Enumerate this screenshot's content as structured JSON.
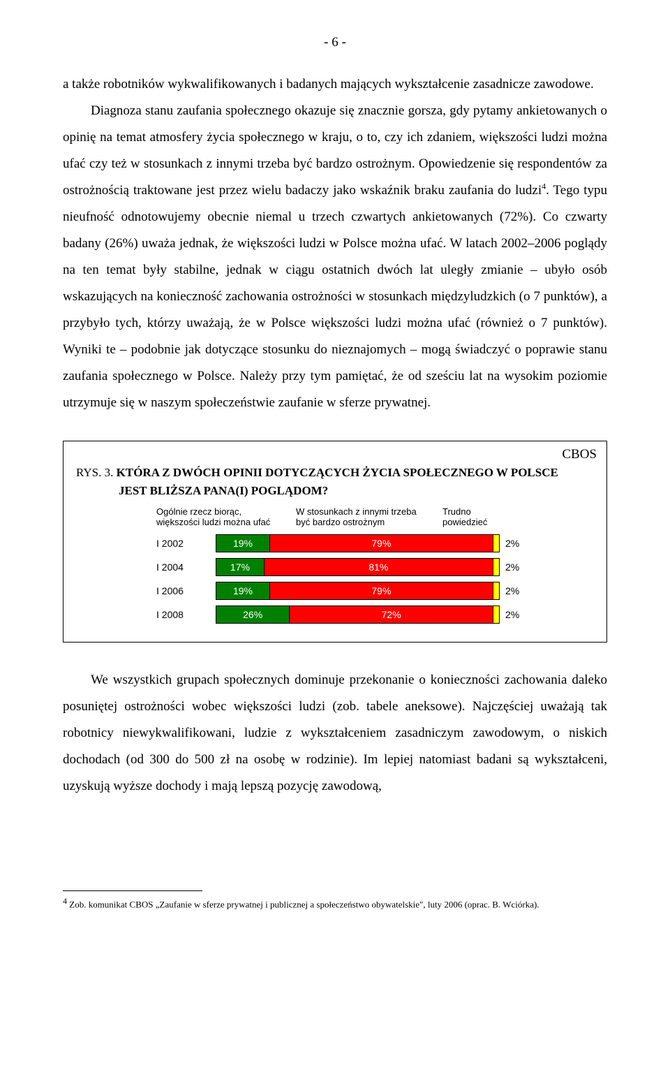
{
  "page_number_label": "- 6 -",
  "paragraph1_part1": "a także robotników wykwalifikowanych i badanych mających wykształcenie zasadnicze zawodowe.",
  "paragraph1_part2_pre_sup": "Diagnoza stanu zaufania społecznego okazuje się znacznie gorsza, gdy pytamy ankietowanych o opinię na temat atmosfery życia społecznego w kraju, o to, czy ich zdaniem, większości ludzi można ufać czy też w stosunkach z innymi trzeba być bardzo ostrożnym. Opowiedzenie się respondentów  za ostrożnością traktowane jest przez wielu badaczy jako wskaźnik braku zaufania do ludzi",
  "paragraph1_sup": "4",
  "paragraph1_part2_post_sup": ". Tego typu nieufność odnotowujemy obecnie niemal u trzech czwartych ankietowanych (72%). Co czwarty badany (26%) uważa jednak, że większości ludzi w Polsce można ufać. W latach 2002–2006 poglądy na ten temat były stabilne, jednak w ciągu ostatnich dwóch lat uległy zmianie – ubyło osób wskazujących na konieczność zachowania ostrożności w stosunkach międzyludzkich (o 7 punktów), a przybyło tych, którzy uważają, że w Polsce większości ludzi można ufać (również o 7 punktów). Wyniki te – podobnie jak dotyczące stosunku do nieznajomych – mogą świadczyć o poprawie stanu zaufania społecznego w Polsce. Należy przy tym pamiętać, że  od sześciu lat  na wysokim poziomie utrzymuje się w naszym społeczeństwie zaufanie w sferze prywatnej.",
  "chart": {
    "cbos_label": "CBOS",
    "caption_prefix": "RYS. 3. ",
    "caption_bold_l1": "KTÓRA Z DWÓCH OPINII DOTYCZĄCYCH ŻYCIA SPOŁECZNEGO W POLSCE",
    "caption_bold_l2": "JEST BLIŻSZA PANA(I) POGLĄDOM?",
    "legend1_l1": "Ogólnie rzecz biorąc,",
    "legend1_l2": "większości ludzi można ufać",
    "legend2_l1": "W stosunkach z innymi trzeba",
    "legend2_l2": "być bardzo ostrożnym",
    "legend3_l1": "Trudno",
    "legend3_l2": "powiedzieć",
    "colors": {
      "trust": "#008000",
      "careful": "#ff0000",
      "dontknow": "#ffff00"
    },
    "bars": [
      {
        "year": "I 2002",
        "trust": 19,
        "careful": 79,
        "dk": 2,
        "trust_label": "19%",
        "careful_label": "79%",
        "dk_label": "2%"
      },
      {
        "year": "I 2004",
        "trust": 17,
        "careful": 81,
        "dk": 2,
        "trust_label": "17%",
        "careful_label": "81%",
        "dk_label": "2%"
      },
      {
        "year": "I 2006",
        "trust": 19,
        "careful": 79,
        "dk": 2,
        "trust_label": "19%",
        "careful_label": "79%",
        "dk_label": "2%"
      },
      {
        "year": "I 2008",
        "trust": 26,
        "careful": 72,
        "dk": 2,
        "trust_label": "26%",
        "careful_label": "72%",
        "dk_label": "2%"
      }
    ]
  },
  "paragraph2": "We wszystkich grupach społecznych dominuje przekonanie o konieczności zachowania daleko posuniętej ostrożności wobec większości ludzi (zob. tabele aneksowe). Najczęściej uważają tak robotnicy niewykwalifikowani, ludzie z wykształceniem zasadniczym zawodowym, o niskich dochodach (od 300 do 500 zł na osobę w rodzinie). Im lepiej natomiast badani są wykształceni, uzyskują wyższe dochody i mają lepszą pozycję zawodową,",
  "footnote_sup": "4",
  "footnote_text": " Zob. komunikat CBOS „Zaufanie w sferze prywatnej i publicznej a społeczeństwo obywatelskie\", luty 2006 (oprac. B. Wciórka)."
}
